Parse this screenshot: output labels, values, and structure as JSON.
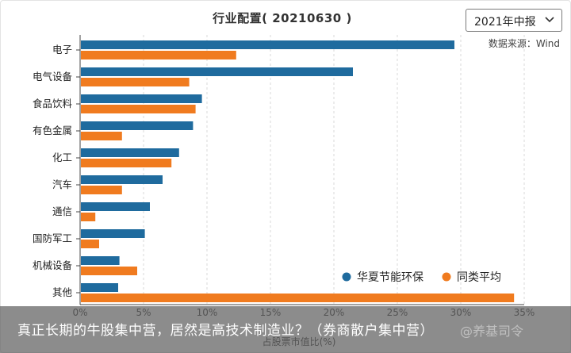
{
  "header": {
    "period_selected": "2021年中报",
    "source": "数据来源：Wind"
  },
  "colors": {
    "series_1": "#1f6b9e",
    "series_2": "#f07b1f",
    "grid": "#d8d8d8"
  },
  "chart_data": {
    "type": "bar",
    "orientation": "horizontal",
    "title": "行业配置( 20210630 )",
    "xlabel": "占股票市值比(%)",
    "ylabel": "",
    "xlim": [
      0,
      35
    ],
    "x_ticks": [
      "0%",
      "5%",
      "10%",
      "15%",
      "20%",
      "25%",
      "30%",
      "35%"
    ],
    "grid": true,
    "legend_position": "bottom-right",
    "categories": [
      "电子",
      "电气设备",
      "食品饮料",
      "有色金属",
      "化工",
      "汽车",
      "通信",
      "国防军工",
      "机械设备",
      "其他"
    ],
    "series": [
      {
        "name": "华夏节能环保",
        "values": [
          29.5,
          21.5,
          9.6,
          8.9,
          7.8,
          6.5,
          5.5,
          5.1,
          3.1,
          3.0
        ]
      },
      {
        "name": "同类平均",
        "values": [
          12.3,
          8.6,
          9.1,
          3.3,
          7.2,
          3.3,
          1.2,
          1.5,
          4.5,
          34.2
        ]
      }
    ]
  },
  "overlay": {
    "caption": "真正长期的牛股集中营，居然是高技术制造业？（券商散户集中营）",
    "watermark": "@养基司令"
  }
}
